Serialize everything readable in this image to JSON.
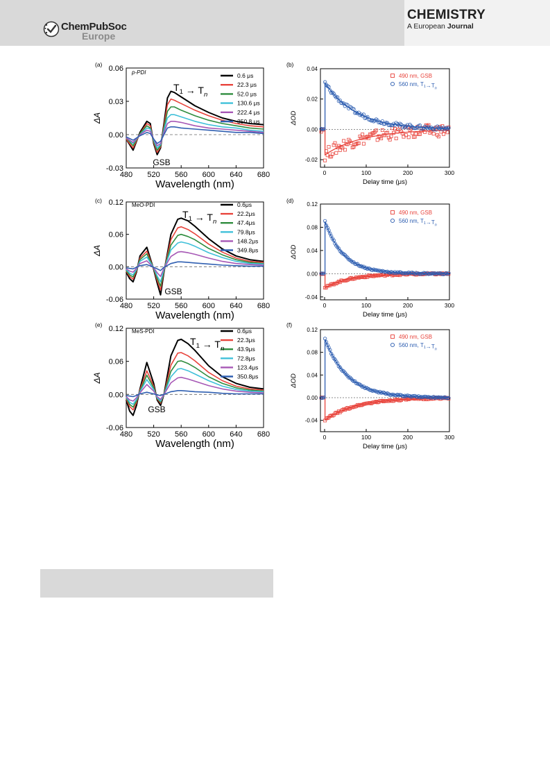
{
  "header": {
    "brand": "ChemPubSoc",
    "brand_sub": "Europe",
    "journal": "CHEMISTRY",
    "journal_sub_a": "A European",
    "journal_sub_b": "Journal"
  },
  "colors": {
    "black": "#000000",
    "red": "#e8433b",
    "green": "#2f8c3e",
    "cyan": "#3fc0d9",
    "purple": "#a657b5",
    "blue": "#2f5fb1",
    "kin_red": "#e8433b",
    "kin_blue": "#2b5cb0"
  },
  "chart_data": [
    {
      "panel": "(a)",
      "type": "line",
      "name": "p-PDI",
      "xlabel": "Wavelength (nm)",
      "ylabel": "ΔA",
      "xlim": [
        480,
        680
      ],
      "ylim": [
        -0.03,
        0.06
      ],
      "xticks": [
        "480",
        "520",
        "560",
        "600",
        "640",
        "680"
      ],
      "yticks": [
        "-0.03",
        "0.00",
        "0.03",
        "0.06"
      ],
      "annotations": [
        "T1 → Tn",
        "GSB"
      ],
      "x": [
        480,
        490,
        500,
        510,
        515,
        520,
        525,
        530,
        535,
        540,
        545,
        550,
        560,
        580,
        600,
        620,
        640,
        660,
        680
      ],
      "series": [
        {
          "name": "0.6 μs",
          "color": "black",
          "values": [
            -0.004,
            -0.014,
            0.002,
            0.012,
            0.01,
            -0.008,
            -0.018,
            -0.012,
            0.01,
            0.033,
            0.039,
            0.038,
            0.034,
            0.026,
            0.02,
            0.015,
            0.012,
            0.01,
            0.009
          ]
        },
        {
          "name": "22.3 μs",
          "color": "red",
          "values": [
            -0.004,
            -0.012,
            0.001,
            0.01,
            0.008,
            -0.007,
            -0.016,
            -0.011,
            0.008,
            0.027,
            0.032,
            0.031,
            0.028,
            0.022,
            0.017,
            0.013,
            0.01,
            0.008,
            0.007
          ]
        },
        {
          "name": "52.0 μs",
          "color": "green",
          "values": [
            -0.003,
            -0.01,
            0.001,
            0.008,
            0.006,
            -0.006,
            -0.014,
            -0.01,
            0.006,
            0.021,
            0.025,
            0.025,
            0.022,
            0.017,
            0.013,
            0.01,
            0.008,
            0.006,
            0.005
          ]
        },
        {
          "name": "130.6 μs",
          "color": "cyan",
          "values": [
            -0.003,
            -0.008,
            0.0,
            0.006,
            0.005,
            -0.005,
            -0.012,
            -0.009,
            0.004,
            0.015,
            0.018,
            0.018,
            0.016,
            0.012,
            0.009,
            0.007,
            0.006,
            0.004,
            0.003
          ]
        },
        {
          "name": "222.4 μs",
          "color": "purple",
          "values": [
            -0.003,
            -0.007,
            0.0,
            0.004,
            0.003,
            -0.004,
            -0.01,
            -0.008,
            0.002,
            0.01,
            0.012,
            0.012,
            0.011,
            0.008,
            0.006,
            0.005,
            0.004,
            0.003,
            0.002
          ]
        },
        {
          "name": "350.8 μs",
          "color": "blue",
          "values": [
            -0.002,
            -0.005,
            -0.001,
            0.002,
            0.001,
            -0.004,
            -0.008,
            -0.006,
            0.0,
            0.006,
            0.007,
            0.007,
            0.006,
            0.005,
            0.004,
            0.003,
            0.002,
            0.002,
            0.001
          ]
        }
      ]
    },
    {
      "panel": "(b)",
      "type": "scatter",
      "xlabel": "Delay time (μs)",
      "ylabel": "ΔOD",
      "xlim": [
        -10,
        300
      ],
      "ylim": [
        -0.025,
        0.04
      ],
      "xticks": [
        "0",
        "100",
        "200",
        "300"
      ],
      "yticks": [
        "-0.02",
        "0.00",
        "0.02",
        "0.04"
      ],
      "series": [
        {
          "name": "490 nm, GSB",
          "color": "kin_red",
          "marker": "square",
          "amplitude": -0.017,
          "tau": 90,
          "noise": 0.004
        },
        {
          "name": "560 nm, T1→Tn",
          "color": "kin_blue",
          "marker": "circle",
          "amplitude": 0.031,
          "tau": 75,
          "noise": 0.0012
        }
      ]
    },
    {
      "panel": "(c)",
      "type": "line",
      "name": "MeO-PDI",
      "xlabel": "Wavelength (nm)",
      "ylabel": "ΔA",
      "xlim": [
        480,
        680
      ],
      "ylim": [
        -0.06,
        0.12
      ],
      "xticks": [
        "480",
        "520",
        "560",
        "600",
        "640",
        "680"
      ],
      "yticks": [
        "-0.06",
        "0.00",
        "0.06",
        "0.12"
      ],
      "annotations": [
        "T1 → Tn",
        "GSB"
      ],
      "x": [
        480,
        485,
        490,
        495,
        500,
        510,
        520,
        525,
        530,
        535,
        545,
        555,
        560,
        570,
        580,
        600,
        620,
        640,
        660,
        680
      ],
      "series": [
        {
          "name": "0.6μs",
          "color": "black",
          "values": [
            -0.01,
            -0.022,
            -0.028,
            -0.01,
            0.02,
            0.036,
            -0.005,
            -0.03,
            -0.052,
            -0.01,
            0.06,
            0.088,
            0.09,
            0.085,
            0.075,
            0.052,
            0.033,
            0.02,
            0.013,
            0.01
          ]
        },
        {
          "name": "22.2μs",
          "color": "red",
          "values": [
            -0.008,
            -0.018,
            -0.023,
            -0.008,
            0.016,
            0.029,
            -0.004,
            -0.025,
            -0.043,
            -0.008,
            0.05,
            0.072,
            0.074,
            0.069,
            0.061,
            0.042,
            0.027,
            0.016,
            0.01,
            0.008
          ]
        },
        {
          "name": "47.4μs",
          "color": "green",
          "values": [
            -0.007,
            -0.015,
            -0.019,
            -0.006,
            0.013,
            0.024,
            -0.003,
            -0.021,
            -0.036,
            -0.007,
            0.04,
            0.058,
            0.06,
            0.056,
            0.05,
            0.034,
            0.022,
            0.013,
            0.008,
            0.006
          ]
        },
        {
          "name": "79.8μs",
          "color": "cyan",
          "values": [
            -0.005,
            -0.012,
            -0.015,
            -0.005,
            0.01,
            0.018,
            -0.002,
            -0.017,
            -0.028,
            -0.005,
            0.031,
            0.044,
            0.046,
            0.043,
            0.038,
            0.026,
            0.017,
            0.01,
            0.006,
            0.005
          ]
        },
        {
          "name": "148.2μs",
          "color": "purple",
          "values": [
            -0.004,
            -0.008,
            -0.01,
            -0.003,
            0.006,
            0.011,
            -0.002,
            -0.011,
            -0.018,
            -0.003,
            0.019,
            0.027,
            0.028,
            0.026,
            0.023,
            0.016,
            0.01,
            0.006,
            0.004,
            0.003
          ]
        },
        {
          "name": "349.8μs",
          "color": "blue",
          "values": [
            -0.002,
            -0.003,
            -0.004,
            -0.001,
            0.002,
            0.004,
            -0.001,
            -0.004,
            -0.007,
            -0.001,
            0.006,
            0.009,
            0.009,
            0.008,
            0.007,
            0.005,
            0.003,
            0.002,
            0.001,
            0.001
          ]
        }
      ]
    },
    {
      "panel": "(d)",
      "type": "scatter",
      "xlabel": "Delay time (μs)",
      "ylabel": "ΔOD",
      "xlim": [
        -10,
        300
      ],
      "ylim": [
        -0.045,
        0.12
      ],
      "xticks": [
        "0",
        "100",
        "200",
        "300"
      ],
      "yticks": [
        "-0.04",
        "0.00",
        "0.04",
        "0.08",
        "0.12"
      ],
      "series": [
        {
          "name": "490 nm, GSB",
          "color": "kin_red",
          "marker": "square",
          "amplitude": -0.025,
          "tau": 60,
          "noise": 0.0015
        },
        {
          "name": "560 nm, T1→Tn",
          "color": "kin_blue",
          "marker": "circle",
          "amplitude": 0.092,
          "tau": 45,
          "noise": 0.0012
        }
      ]
    },
    {
      "panel": "(e)",
      "type": "line",
      "name": "MeS-PDI",
      "xlabel": "Wavelength (nm)",
      "ylabel": "ΔA",
      "xlim": [
        480,
        680
      ],
      "ylim": [
        -0.06,
        0.12
      ],
      "xticks": [
        "480",
        "520",
        "560",
        "600",
        "640",
        "680"
      ],
      "yticks": [
        "-0.06",
        "0.00",
        "0.06",
        "0.12"
      ],
      "annotations": [
        "T1 → Tn",
        "GSB"
      ],
      "x": [
        480,
        485,
        490,
        495,
        500,
        510,
        520,
        525,
        530,
        535,
        545,
        555,
        560,
        570,
        580,
        600,
        620,
        640,
        660,
        680
      ],
      "series": [
        {
          "name": "0.6μs",
          "color": "black",
          "values": [
            -0.01,
            -0.03,
            -0.038,
            -0.02,
            0.01,
            0.058,
            0.02,
            -0.01,
            -0.02,
            0.0,
            0.07,
            0.098,
            0.1,
            0.092,
            0.08,
            0.052,
            0.032,
            0.02,
            0.013,
            0.01
          ]
        },
        {
          "name": "22.3μs",
          "color": "red",
          "values": [
            -0.008,
            -0.022,
            -0.028,
            -0.015,
            0.008,
            0.043,
            0.015,
            -0.008,
            -0.016,
            0.0,
            0.053,
            0.075,
            0.076,
            0.07,
            0.061,
            0.04,
            0.025,
            0.015,
            0.01,
            0.008
          ]
        },
        {
          "name": "43.9μs",
          "color": "green",
          "values": [
            -0.006,
            -0.018,
            -0.023,
            -0.012,
            0.006,
            0.035,
            0.012,
            -0.007,
            -0.014,
            0.0,
            0.042,
            0.06,
            0.061,
            0.056,
            0.049,
            0.032,
            0.02,
            0.012,
            0.008,
            0.006
          ]
        },
        {
          "name": "72.8μs",
          "color": "cyan",
          "values": [
            -0.005,
            -0.014,
            -0.018,
            -0.009,
            0.005,
            0.027,
            0.009,
            -0.006,
            -0.012,
            0.0,
            0.032,
            0.046,
            0.047,
            0.043,
            0.037,
            0.025,
            0.015,
            0.009,
            0.006,
            0.005
          ]
        },
        {
          "name": "123.4μs",
          "color": "purple",
          "values": [
            -0.004,
            -0.01,
            -0.012,
            -0.006,
            0.003,
            0.018,
            0.006,
            -0.004,
            -0.009,
            0.0,
            0.021,
            0.03,
            0.031,
            0.028,
            0.024,
            0.016,
            0.01,
            0.006,
            0.004,
            0.003
          ]
        },
        {
          "name": "350.8μs",
          "color": "blue",
          "values": [
            -0.002,
            -0.003,
            -0.004,
            -0.002,
            0.001,
            0.004,
            0.001,
            -0.001,
            -0.002,
            0.0,
            0.005,
            0.007,
            0.007,
            0.006,
            0.005,
            0.004,
            0.002,
            0.001,
            0.001,
            0.001
          ]
        }
      ]
    },
    {
      "panel": "(f)",
      "type": "scatter",
      "xlabel": "Delay time (μs)",
      "ylabel": "ΔOD",
      "xlim": [
        -10,
        300
      ],
      "ylim": [
        -0.06,
        0.12
      ],
      "xticks": [
        "0",
        "100",
        "200",
        "300"
      ],
      "yticks": [
        "-0.04",
        "0.00",
        "0.04",
        "0.08",
        "0.12"
      ],
      "series": [
        {
          "name": "490 nm, GSB",
          "color": "kin_red",
          "marker": "square",
          "amplitude": -0.04,
          "tau": 75,
          "noise": 0.0015
        },
        {
          "name": "560 nm, T1→Tn",
          "color": "kin_blue",
          "marker": "circle",
          "amplitude": 0.105,
          "tau": 55,
          "noise": 0.0012
        }
      ]
    }
  ]
}
